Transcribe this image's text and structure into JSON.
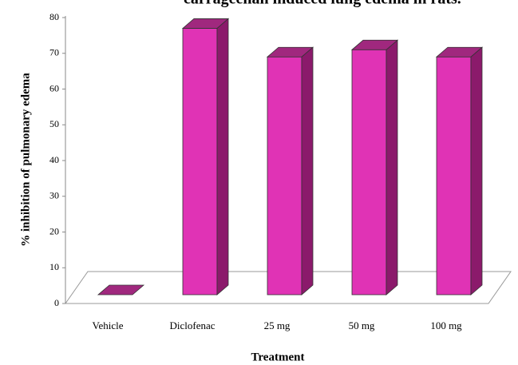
{
  "chart_data": {
    "type": "bar3d",
    "title": "carrageenan induced lung edema in rats.",
    "xlabel": "Treatment",
    "ylabel": "% inhibition of pulmonary edema",
    "categories": [
      "Vehicle",
      "Diclofenac",
      "25 mg",
      "50 mg",
      "100 mg"
    ],
    "values": [
      0,
      77,
      69,
      71,
      69
    ],
    "color": "#e033b5",
    "ylim": [
      0,
      80
    ],
    "yticks": [
      0,
      10,
      20,
      30,
      40,
      50,
      60,
      70,
      80
    ]
  }
}
